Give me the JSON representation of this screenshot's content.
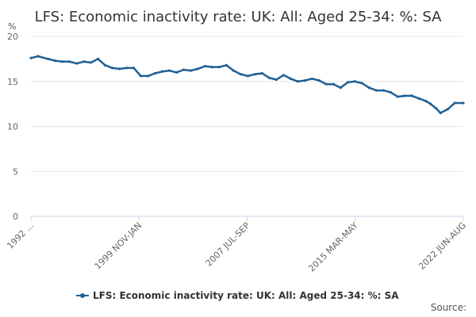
{
  "chart_data": {
    "type": "line",
    "title": "LFS: Economic inactivity rate: UK: All: Aged 25-34: %: SA",
    "ylabel": "%",
    "xlabel": "",
    "ylim": [
      0,
      20
    ],
    "yticks": [
      0,
      5,
      10,
      15,
      20
    ],
    "xticks": [
      "1992 ...",
      "1999 NOV-JAN",
      "2007 JUL-SEP",
      "2015 MAR-MAY",
      "2022 JUN-AUG"
    ],
    "xlim": [
      1992.3,
      2022.6
    ],
    "grid": true,
    "legend_position": "bottom",
    "source_label": "Source:",
    "series": [
      {
        "name": "LFS: Economic inactivity rate: UK: All: Aged 25-34: %: SA",
        "color": "#206095",
        "x": [
          1992.3,
          1992.8,
          1993.5,
          1994.0,
          1994.5,
          1995.0,
          1995.5,
          1996.0,
          1996.5,
          1997.0,
          1997.5,
          1998.0,
          1998.5,
          1999.0,
          1999.5,
          2000.0,
          2000.5,
          2001.0,
          2001.5,
          2002.0,
          2002.5,
          2003.0,
          2003.5,
          2004.0,
          2004.5,
          2005.0,
          2005.5,
          2006.0,
          2006.5,
          2007.0,
          2007.5,
          2008.0,
          2008.5,
          2009.0,
          2009.5,
          2010.0,
          2010.5,
          2011.0,
          2011.5,
          2012.0,
          2012.5,
          2013.0,
          2013.5,
          2014.0,
          2014.5,
          2015.0,
          2015.5,
          2016.0,
          2016.5,
          2017.0,
          2017.5,
          2018.0,
          2018.5,
          2019.0,
          2019.5,
          2020.0,
          2020.3,
          2020.7,
          2021.0,
          2021.5,
          2022.0,
          2022.6
        ],
        "values": [
          17.6,
          17.8,
          17.5,
          17.3,
          17.2,
          17.2,
          17.0,
          17.2,
          17.1,
          17.5,
          16.8,
          16.5,
          16.4,
          16.5,
          16.5,
          15.6,
          15.6,
          15.9,
          16.1,
          16.2,
          16.0,
          16.3,
          16.2,
          16.4,
          16.7,
          16.6,
          16.6,
          16.8,
          16.2,
          15.8,
          15.6,
          15.8,
          15.9,
          15.4,
          15.2,
          15.7,
          15.3,
          15.0,
          15.1,
          15.3,
          15.1,
          14.7,
          14.7,
          14.3,
          14.9,
          15.0,
          14.8,
          14.3,
          14.0,
          14.0,
          13.8,
          13.3,
          13.4,
          13.4,
          13.1,
          12.8,
          12.5,
          12.0,
          11.5,
          11.9,
          12.6,
          12.6
        ]
      }
    ]
  }
}
